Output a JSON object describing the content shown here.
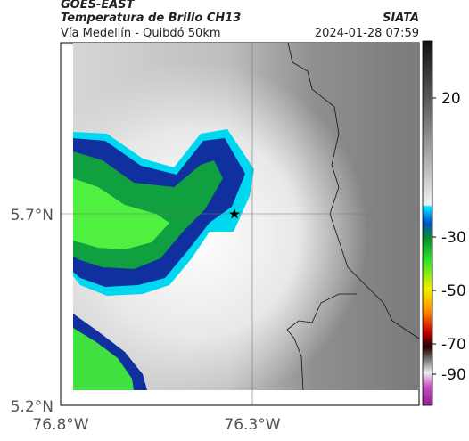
{
  "header": {
    "satellite": "GOES-EAST",
    "product": "Temperatura de Brillo CH13",
    "agency": "SIATA",
    "region": "Vía Medellín - Quibdó 50km",
    "datetime": "2024-01-28 07:59"
  },
  "map": {
    "lat_labels": [
      "5.7°N",
      "5.2°N"
    ],
    "lon_labels": [
      "76.8°W",
      "76.3°W"
    ]
  },
  "colorbar": {
    "ticks": [
      20,
      -30,
      -50,
      -70,
      -90
    ]
  }
}
